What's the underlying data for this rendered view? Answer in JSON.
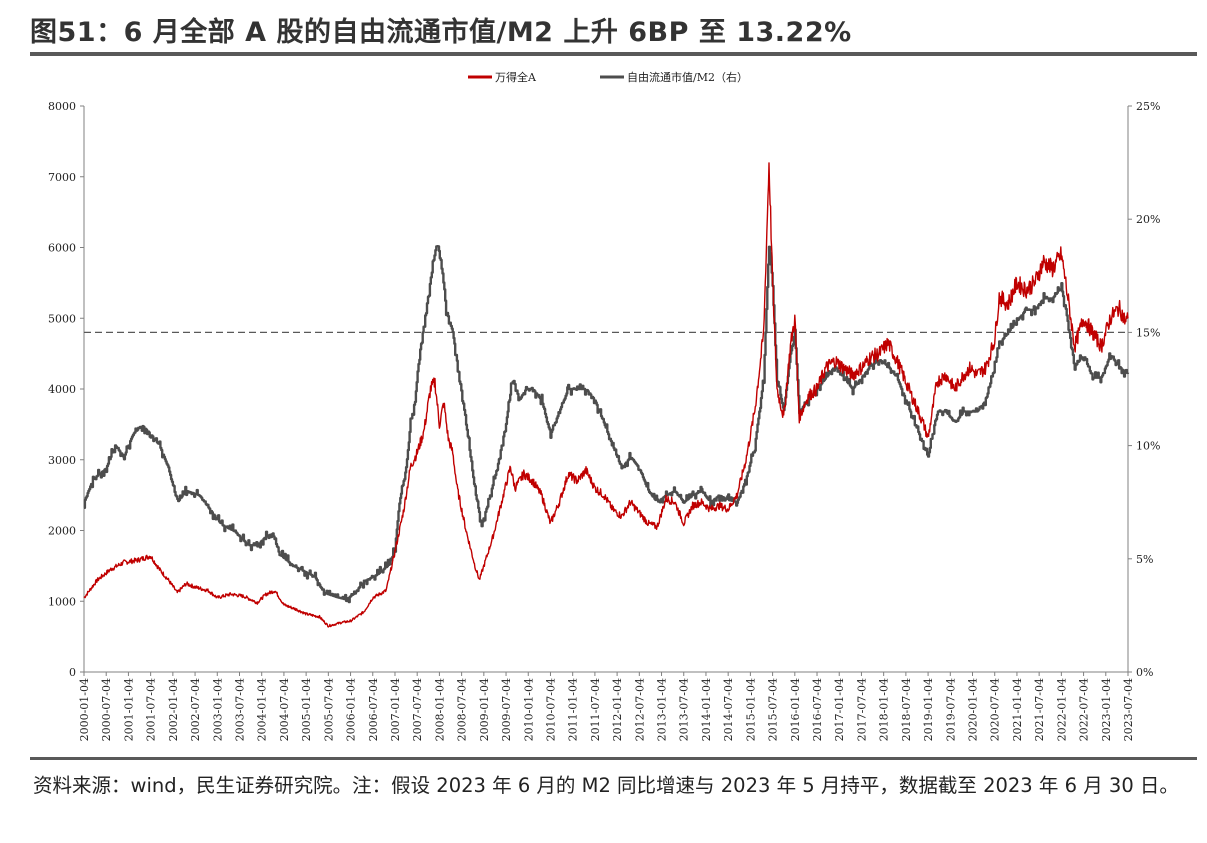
{
  "title": "图51：6 月全部 A 股的自由流通市值/M2 上升 6BP 至 13.22%",
  "source_note": "资料来源：wind，民生证券研究院。注：假设 2023 年 6 月的 M2 同比增速与 2023 年 5 月持平，数据截至 2023 年 6 月 30 日。",
  "colors": {
    "wind_a": "#c00000",
    "ratio": "#4d4d4d",
    "axis": "#808080",
    "threshold": "#595959"
  },
  "chart_data": {
    "type": "line",
    "x_tick_labels": [
      "2000-01-04",
      "2000-07-04",
      "2001-01-04",
      "2001-07-04",
      "2002-01-04",
      "2002-07-04",
      "2003-01-04",
      "2003-07-04",
      "2004-01-04",
      "2004-07-04",
      "2005-01-04",
      "2005-07-04",
      "2006-01-04",
      "2006-07-04",
      "2007-01-04",
      "2007-07-04",
      "2008-01-04",
      "2008-07-04",
      "2009-01-04",
      "2009-07-04",
      "2010-01-04",
      "2010-07-04",
      "2011-01-04",
      "2011-07-04",
      "2012-01-04",
      "2012-07-04",
      "2013-01-04",
      "2013-07-04",
      "2014-01-04",
      "2014-07-04",
      "2015-01-04",
      "2015-07-04",
      "2016-01-04",
      "2016-07-04",
      "2017-01-04",
      "2017-07-04",
      "2018-01-04",
      "2018-07-04",
      "2019-01-04",
      "2019-07-04",
      "2020-01-04",
      "2020-07-04",
      "2021-01-04",
      "2021-07-04",
      "2022-01-04",
      "2022-07-04",
      "2023-01-04",
      "2023-07-04"
    ],
    "y_left_ticks": [
      "0",
      "1000",
      "2000",
      "3000",
      "4000",
      "5000",
      "6000",
      "7000",
      "8000"
    ],
    "y_right_ticks": [
      "0%",
      "5%",
      "10%",
      "15%",
      "20%",
      "25%"
    ],
    "ylim_left": [
      0,
      8000
    ],
    "ylim_right": [
      0,
      25
    ],
    "threshold_right": 15,
    "legend_position": "top-center",
    "series": [
      {
        "name": "万得全A",
        "axis": "left",
        "color": "#c00000",
        "points": [
          [
            2000.0,
            1050
          ],
          [
            2000.3,
            1300
          ],
          [
            2000.6,
            1450
          ],
          [
            2000.9,
            1550
          ],
          [
            2001.2,
            1580
          ],
          [
            2001.4,
            1620
          ],
          [
            2001.5,
            1640
          ],
          [
            2001.7,
            1450
          ],
          [
            2001.9,
            1300
          ],
          [
            2002.1,
            1120
          ],
          [
            2002.3,
            1250
          ],
          [
            2002.5,
            1200
          ],
          [
            2002.8,
            1150
          ],
          [
            2003.0,
            1050
          ],
          [
            2003.3,
            1100
          ],
          [
            2003.6,
            1070
          ],
          [
            2003.9,
            980
          ],
          [
            2004.1,
            1100
          ],
          [
            2004.3,
            1150
          ],
          [
            2004.5,
            950
          ],
          [
            2004.8,
            880
          ],
          [
            2005.0,
            820
          ],
          [
            2005.3,
            780
          ],
          [
            2005.5,
            650
          ],
          [
            2005.8,
            700
          ],
          [
            2006.0,
            720
          ],
          [
            2006.3,
            850
          ],
          [
            2006.5,
            1050
          ],
          [
            2006.8,
            1150
          ],
          [
            2007.0,
            1700
          ],
          [
            2007.2,
            2300
          ],
          [
            2007.35,
            2900
          ],
          [
            2007.5,
            3100
          ],
          [
            2007.65,
            3400
          ],
          [
            2007.8,
            4000
          ],
          [
            2007.9,
            4100
          ],
          [
            2008.0,
            3500
          ],
          [
            2008.1,
            3800
          ],
          [
            2008.2,
            3300
          ],
          [
            2008.3,
            3100
          ],
          [
            2008.4,
            2600
          ],
          [
            2008.6,
            2000
          ],
          [
            2008.8,
            1500
          ],
          [
            2008.9,
            1300
          ],
          [
            2009.0,
            1500
          ],
          [
            2009.2,
            1900
          ],
          [
            2009.4,
            2400
          ],
          [
            2009.6,
            2900
          ],
          [
            2009.7,
            2600
          ],
          [
            2009.9,
            2800
          ],
          [
            2010.1,
            2700
          ],
          [
            2010.3,
            2500
          ],
          [
            2010.5,
            2100
          ],
          [
            2010.7,
            2400
          ],
          [
            2010.9,
            2800
          ],
          [
            2011.1,
            2700
          ],
          [
            2011.3,
            2850
          ],
          [
            2011.5,
            2600
          ],
          [
            2011.7,
            2500
          ],
          [
            2011.9,
            2300
          ],
          [
            2012.1,
            2200
          ],
          [
            2012.3,
            2400
          ],
          [
            2012.5,
            2250
          ],
          [
            2012.7,
            2100
          ],
          [
            2012.9,
            2050
          ],
          [
            2013.1,
            2450
          ],
          [
            2013.3,
            2400
          ],
          [
            2013.5,
            2100
          ],
          [
            2013.7,
            2350
          ],
          [
            2013.9,
            2400
          ],
          [
            2014.1,
            2300
          ],
          [
            2014.3,
            2350
          ],
          [
            2014.5,
            2300
          ],
          [
            2014.7,
            2500
          ],
          [
            2014.9,
            3000
          ],
          [
            2015.1,
            3700
          ],
          [
            2015.3,
            4800
          ],
          [
            2015.42,
            7200
          ],
          [
            2015.5,
            5500
          ],
          [
            2015.6,
            4000
          ],
          [
            2015.75,
            3600
          ],
          [
            2015.9,
            4600
          ],
          [
            2016.0,
            5000
          ],
          [
            2016.1,
            3600
          ],
          [
            2016.3,
            3900
          ],
          [
            2016.5,
            4000
          ],
          [
            2016.7,
            4300
          ],
          [
            2016.9,
            4400
          ],
          [
            2017.1,
            4300
          ],
          [
            2017.3,
            4200
          ],
          [
            2017.5,
            4300
          ],
          [
            2017.7,
            4450
          ],
          [
            2017.9,
            4500
          ],
          [
            2018.1,
            4650
          ],
          [
            2018.3,
            4400
          ],
          [
            2018.5,
            4100
          ],
          [
            2018.7,
            3800
          ],
          [
            2018.9,
            3500
          ],
          [
            2019.0,
            3300
          ],
          [
            2019.2,
            4100
          ],
          [
            2019.4,
            4200
          ],
          [
            2019.6,
            4000
          ],
          [
            2019.8,
            4200
          ],
          [
            2019.95,
            4300
          ],
          [
            2020.1,
            4200
          ],
          [
            2020.3,
            4300
          ],
          [
            2020.5,
            4700
          ],
          [
            2020.6,
            5300
          ],
          [
            2020.8,
            5200
          ],
          [
            2021.0,
            5500
          ],
          [
            2021.2,
            5400
          ],
          [
            2021.4,
            5500
          ],
          [
            2021.6,
            5800
          ],
          [
            2021.8,
            5700
          ],
          [
            2022.0,
            5900
          ],
          [
            2022.1,
            5500
          ],
          [
            2022.3,
            4600
          ],
          [
            2022.5,
            5000
          ],
          [
            2022.7,
            4800
          ],
          [
            2022.9,
            4600
          ],
          [
            2023.1,
            5000
          ],
          [
            2023.3,
            5150
          ],
          [
            2023.45,
            4950
          ],
          [
            2023.5,
            5000
          ]
        ]
      },
      {
        "name": "自由流通市值/M2（右）",
        "axis": "right",
        "color": "#4d4d4d",
        "points": [
          [
            2000.0,
            7.5
          ],
          [
            2000.2,
            8.5
          ],
          [
            2000.5,
            9.0
          ],
          [
            2000.7,
            10.0
          ],
          [
            2000.9,
            9.5
          ],
          [
            2001.1,
            10.5
          ],
          [
            2001.3,
            10.9
          ],
          [
            2001.5,
            10.5
          ],
          [
            2001.7,
            10.0
          ],
          [
            2001.9,
            9.0
          ],
          [
            2002.1,
            7.5
          ],
          [
            2002.3,
            8.0
          ],
          [
            2002.6,
            7.8
          ],
          [
            2002.9,
            7.0
          ],
          [
            2003.1,
            6.5
          ],
          [
            2003.4,
            6.2
          ],
          [
            2003.7,
            5.6
          ],
          [
            2003.9,
            5.6
          ],
          [
            2004.1,
            6.0
          ],
          [
            2004.25,
            6.1
          ],
          [
            2004.4,
            5.2
          ],
          [
            2004.7,
            4.7
          ],
          [
            2004.9,
            4.5
          ],
          [
            2005.2,
            4.2
          ],
          [
            2005.4,
            3.5
          ],
          [
            2005.7,
            3.3
          ],
          [
            2005.9,
            3.2
          ],
          [
            2006.1,
            3.5
          ],
          [
            2006.3,
            4.0
          ],
          [
            2006.6,
            4.3
          ],
          [
            2006.9,
            4.8
          ],
          [
            2007.0,
            5.5
          ],
          [
            2007.1,
            7.5
          ],
          [
            2007.25,
            9.0
          ],
          [
            2007.35,
            11.0
          ],
          [
            2007.45,
            12.0
          ],
          [
            2007.55,
            14.0
          ],
          [
            2007.7,
            16.0
          ],
          [
            2007.85,
            18.0
          ],
          [
            2007.95,
            19.0
          ],
          [
            2008.05,
            18.0
          ],
          [
            2008.15,
            16.0
          ],
          [
            2008.3,
            15.0
          ],
          [
            2008.45,
            13.0
          ],
          [
            2008.6,
            11.0
          ],
          [
            2008.8,
            8.0
          ],
          [
            2008.95,
            6.5
          ],
          [
            2009.1,
            7.5
          ],
          [
            2009.3,
            9.0
          ],
          [
            2009.5,
            11.0
          ],
          [
            2009.65,
            13.0
          ],
          [
            2009.8,
            12.0
          ],
          [
            2009.95,
            12.5
          ],
          [
            2010.1,
            12.5
          ],
          [
            2010.3,
            12.0
          ],
          [
            2010.5,
            10.5
          ],
          [
            2010.7,
            11.5
          ],
          [
            2010.9,
            12.5
          ],
          [
            2011.1,
            12.5
          ],
          [
            2011.3,
            12.5
          ],
          [
            2011.5,
            12.0
          ],
          [
            2011.7,
            11.0
          ],
          [
            2011.9,
            10.0
          ],
          [
            2012.1,
            9.0
          ],
          [
            2012.3,
            9.5
          ],
          [
            2012.5,
            9.0
          ],
          [
            2012.7,
            8.0
          ],
          [
            2012.9,
            7.5
          ],
          [
            2013.1,
            7.8
          ],
          [
            2013.3,
            8.0
          ],
          [
            2013.5,
            7.5
          ],
          [
            2013.7,
            7.8
          ],
          [
            2013.9,
            8.0
          ],
          [
            2014.1,
            7.5
          ],
          [
            2014.3,
            7.8
          ],
          [
            2014.5,
            7.6
          ],
          [
            2014.7,
            7.5
          ],
          [
            2014.9,
            8.5
          ],
          [
            2015.1,
            10.0
          ],
          [
            2015.3,
            13.0
          ],
          [
            2015.42,
            19.0
          ],
          [
            2015.5,
            17.0
          ],
          [
            2015.6,
            13.0
          ],
          [
            2015.75,
            11.5
          ],
          [
            2015.9,
            14.0
          ],
          [
            2016.0,
            15.0
          ],
          [
            2016.1,
            11.5
          ],
          [
            2016.3,
            12.0
          ],
          [
            2016.5,
            12.5
          ],
          [
            2016.7,
            13.0
          ],
          [
            2016.9,
            13.5
          ],
          [
            2017.1,
            13.0
          ],
          [
            2017.3,
            12.5
          ],
          [
            2017.5,
            13.0
          ],
          [
            2017.7,
            13.5
          ],
          [
            2017.9,
            13.8
          ],
          [
            2018.1,
            13.5
          ],
          [
            2018.3,
            13.0
          ],
          [
            2018.5,
            12.0
          ],
          [
            2018.7,
            11.0
          ],
          [
            2018.9,
            10.0
          ],
          [
            2019.0,
            9.5
          ],
          [
            2019.2,
            11.5
          ],
          [
            2019.4,
            11.5
          ],
          [
            2019.6,
            11.0
          ],
          [
            2019.8,
            11.5
          ],
          [
            2019.95,
            11.5
          ],
          [
            2020.1,
            11.5
          ],
          [
            2020.3,
            12.0
          ],
          [
            2020.5,
            13.5
          ],
          [
            2020.6,
            14.5
          ],
          [
            2020.8,
            15.0
          ],
          [
            2021.0,
            15.5
          ],
          [
            2021.2,
            16.0
          ],
          [
            2021.4,
            16.0
          ],
          [
            2021.6,
            16.5
          ],
          [
            2021.8,
            16.5
          ],
          [
            2022.0,
            17.0
          ],
          [
            2022.1,
            16.0
          ],
          [
            2022.3,
            13.5
          ],
          [
            2022.5,
            14.0
          ],
          [
            2022.7,
            13.0
          ],
          [
            2022.9,
            13.0
          ],
          [
            2023.1,
            14.0
          ],
          [
            2023.3,
            13.5
          ],
          [
            2023.45,
            13.2
          ],
          [
            2023.5,
            13.22
          ]
        ]
      }
    ]
  }
}
